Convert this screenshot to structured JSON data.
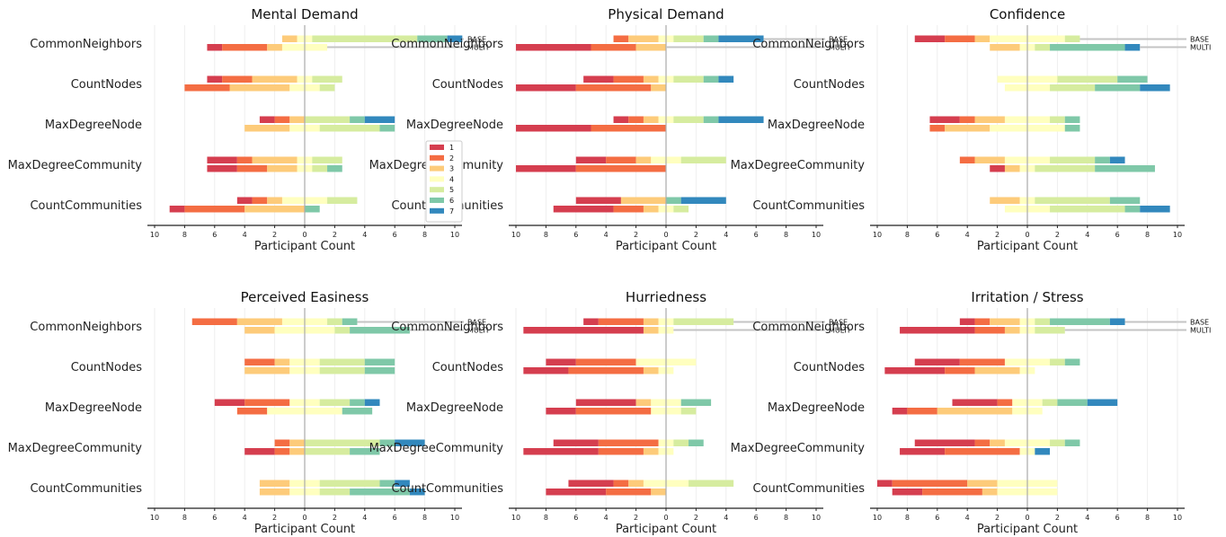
{
  "chart_data": {
    "type": "bar",
    "subtype": "diverging-stacked-likert",
    "categories": [
      "CommonNeighbors",
      "CountNodes",
      "MaxDegreeNode",
      "MaxDegreeCommunity",
      "CountCommunities"
    ],
    "conditions": [
      "BASE",
      "MULTI"
    ],
    "xlabel": "Participant Count",
    "xlim": [
      -10,
      10
    ],
    "xticks": [
      10,
      8,
      6,
      4,
      2,
      0,
      2,
      4,
      6,
      8,
      10
    ],
    "grid": true,
    "legend": {
      "placement": "in Mental Demand panel, lower-right",
      "entries": [
        "1",
        "2",
        "3",
        "4",
        "5",
        "6",
        "7"
      ]
    },
    "colors": [
      "#d53e4f",
      "#f46d43",
      "#fdcb7a",
      "#ffffbf",
      "#d6ec9f",
      "#7fc8a8",
      "#3288bd"
    ],
    "panels": [
      {
        "title": "Mental Demand",
        "counts": [
          [
            [
              0,
              0,
              1,
              1,
              7,
              2,
              1
            ],
            [
              1,
              3,
              1,
              3,
              0,
              0,
              0
            ]
          ],
          [
            [
              1,
              2,
              3,
              1,
              2,
              0,
              0
            ],
            [
              0,
              3,
              4,
              2,
              1,
              0,
              0
            ]
          ],
          [
            [
              1,
              1,
              1,
              0,
              3,
              1,
              2
            ],
            [
              0,
              0,
              3,
              2,
              4,
              1,
              0
            ]
          ],
          [
            [
              2,
              1,
              3,
              1,
              2,
              0,
              0
            ],
            [
              2,
              2,
              2,
              1,
              1,
              1,
              0
            ]
          ],
          [
            [
              1,
              1,
              1,
              3,
              2,
              0,
              0
            ],
            [
              1,
              4,
              4,
              0,
              0,
              1,
              0
            ]
          ]
        ]
      },
      {
        "title": "Physical Demand",
        "counts": [
          [
            [
              0,
              1,
              2,
              1,
              2,
              1,
              3
            ],
            [
              5,
              3,
              2,
              0,
              0,
              0,
              0
            ]
          ],
          [
            [
              2,
              2,
              1,
              1,
              2,
              1,
              1
            ],
            [
              4,
              5,
              1,
              0,
              0,
              0,
              0
            ]
          ],
          [
            [
              1,
              1,
              1,
              1,
              2,
              1,
              3
            ],
            [
              5,
              5,
              0,
              0,
              0,
              0,
              0
            ]
          ],
          [
            [
              2,
              2,
              1,
              2,
              3,
              0,
              0
            ],
            [
              4,
              6,
              0,
              0,
              0,
              0,
              0
            ]
          ],
          [
            [
              3,
              0,
              3,
              0,
              0,
              1,
              3
            ],
            [
              4,
              2,
              1,
              1,
              1,
              0,
              0
            ]
          ]
        ]
      },
      {
        "title": "Confidence",
        "counts": [
          [
            [
              2,
              2,
              1,
              5,
              1,
              0,
              0
            ],
            [
              0,
              0,
              2,
              1,
              1,
              5,
              1
            ]
          ],
          [
            [
              0,
              0,
              0,
              4,
              4,
              2,
              0
            ],
            [
              0,
              0,
              0,
              3,
              3,
              3,
              2
            ]
          ],
          [
            [
              2,
              1,
              2,
              3,
              1,
              1,
              0
            ],
            [
              0,
              1,
              3,
              5,
              0,
              1,
              0
            ]
          ],
          [
            [
              0,
              1,
              2,
              3,
              3,
              1,
              1
            ],
            [
              1,
              0,
              1,
              1,
              4,
              4,
              0
            ]
          ],
          [
            [
              0,
              0,
              2,
              1,
              5,
              2,
              0
            ],
            [
              0,
              0,
              0,
              3,
              5,
              1,
              2
            ]
          ]
        ]
      },
      {
        "title": "Perceived Easiness",
        "counts": [
          [
            [
              0,
              3,
              3,
              3,
              1,
              1,
              0
            ],
            [
              0,
              0,
              2,
              4,
              1,
              4,
              0
            ]
          ],
          [
            [
              0,
              2,
              1,
              2,
              3,
              2,
              0
            ],
            [
              0,
              0,
              3,
              2,
              3,
              2,
              0
            ]
          ],
          [
            [
              2,
              3,
              0,
              2,
              2,
              1,
              1
            ],
            [
              0,
              2,
              0,
              5,
              0,
              2,
              0
            ]
          ],
          [
            [
              0,
              1,
              1,
              0,
              5,
              1,
              2
            ],
            [
              2,
              1,
              1,
              0,
              3,
              2,
              0
            ]
          ],
          [
            [
              0,
              0,
              2,
              2,
              4,
              1,
              1
            ],
            [
              0,
              0,
              2,
              2,
              2,
              4,
              1
            ]
          ]
        ]
      },
      {
        "title": "Hurriedness",
        "counts": [
          [
            [
              1,
              3,
              1,
              1,
              4,
              0,
              0
            ],
            [
              8,
              0,
              1,
              1,
              0,
              0,
              0
            ]
          ],
          [
            [
              2,
              4,
              0,
              4,
              0,
              0,
              0
            ],
            [
              3,
              5,
              1,
              1,
              0,
              0,
              0
            ]
          ],
          [
            [
              4,
              0,
              1,
              2,
              0,
              2,
              0
            ],
            [
              2,
              5,
              0,
              2,
              1,
              0,
              0
            ]
          ],
          [
            [
              3,
              4,
              0,
              1,
              1,
              1,
              0
            ],
            [
              5,
              3,
              1,
              1,
              0,
              0,
              0
            ]
          ],
          [
            [
              3,
              1,
              1,
              3,
              3,
              0,
              0
            ],
            [
              4,
              3,
              1,
              0,
              0,
              0,
              0
            ]
          ]
        ]
      },
      {
        "title": "Irritation / Stress",
        "counts": [
          [
            [
              1,
              1,
              2,
              1,
              1,
              4,
              1
            ],
            [
              5,
              2,
              1,
              1,
              2,
              0,
              0
            ]
          ],
          [
            [
              3,
              3,
              0,
              3,
              1,
              1,
              0
            ],
            [
              4,
              2,
              3,
              1,
              0,
              0,
              0
            ]
          ],
          [
            [
              3,
              1,
              0,
              2,
              1,
              2,
              2
            ],
            [
              1,
              2,
              5,
              2,
              0,
              0,
              0
            ]
          ],
          [
            [
              4,
              1,
              1,
              3,
              1,
              1,
              0
            ],
            [
              3,
              5,
              0,
              1,
              0,
              0,
              1
            ]
          ],
          [
            [
              1,
              5,
              2,
              4,
              0,
              0,
              0
            ],
            [
              2,
              4,
              1,
              4,
              0,
              0,
              0
            ]
          ]
        ]
      }
    ]
  }
}
